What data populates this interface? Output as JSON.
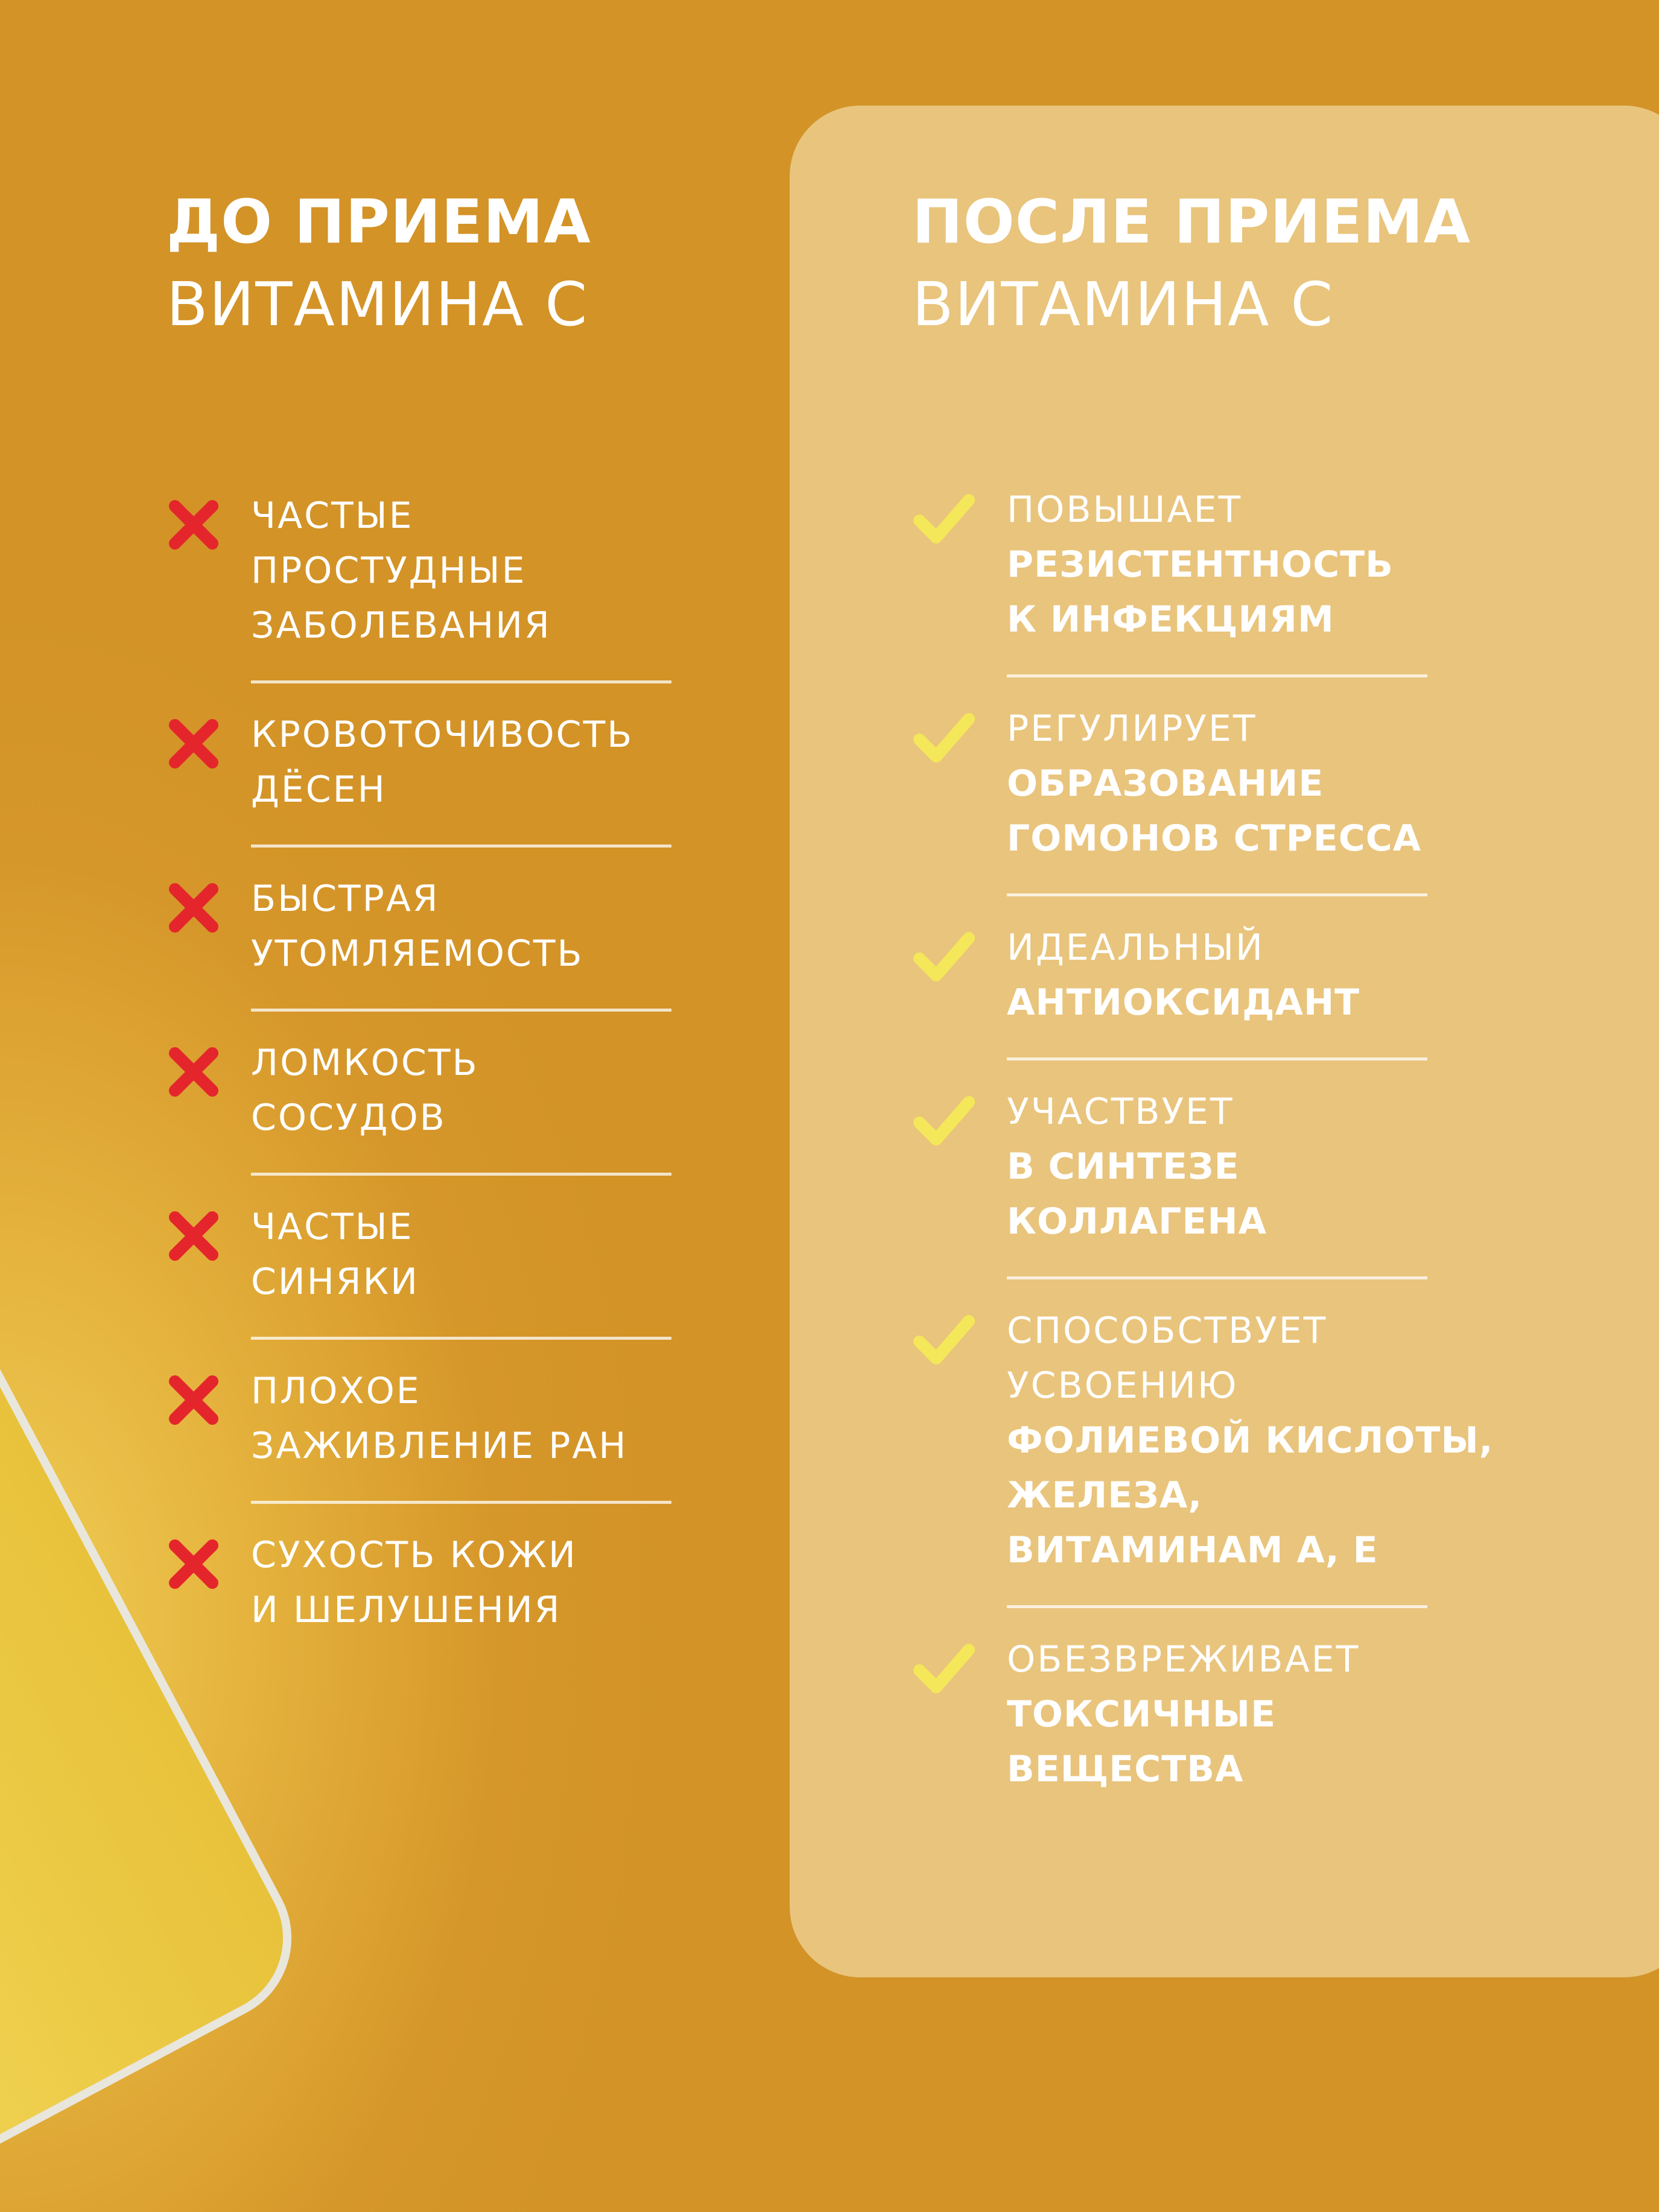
{
  "left": {
    "title": "ДО ПРИЕМА",
    "subtitle": "ВИТАМИНА С",
    "items": [
      [
        "ЧАСТЫЕ",
        "ПРОСТУДНЫЕ",
        "ЗАБОЛЕВАНИЯ"
      ],
      [
        "КРОВОТОЧИВОСТЬ",
        "ДЁСЕН"
      ],
      [
        "БЫСТРАЯ",
        "УТОМЛЯЕМОСТЬ"
      ],
      [
        "ЛОМКОСТЬ",
        "СОСУДОВ"
      ],
      [
        "ЧАСТЫЕ",
        "СИНЯКИ"
      ],
      [
        "ПЛОХОЕ",
        "ЗАЖИВЛЕНИЕ РАН"
      ],
      [
        "СУХОСТЬ КОЖИ",
        "И ШЕЛУШЕНИЯ"
      ]
    ]
  },
  "right": {
    "title": "ПОСЛЕ ПРИЕМА",
    "subtitle": "ВИТАМИНА С",
    "items": [
      {
        "normal": [
          "ПОВЫШАЕТ"
        ],
        "bold": [
          "РЕЗИСТЕНТНОСТЬ",
          "К ИНФЕКЦИЯМ"
        ]
      },
      {
        "normal": [
          "РЕГУЛИРУЕТ"
        ],
        "bold": [
          "ОБРАЗОВАНИЕ",
          "ГОМОНОВ СТРЕССА"
        ]
      },
      {
        "normal": [
          "ИДЕАЛЬНЫЙ"
        ],
        "bold": [
          "АНТИОКСИДАНТ"
        ]
      },
      {
        "normal": [
          "УЧАСТВУЕТ"
        ],
        "bold": [
          "В СИНТЕЗЕ",
          "КОЛЛАГЕНА"
        ]
      },
      {
        "normal": [
          "СПОСОБСТВУЕТ",
          "УСВОЕНИЮ"
        ],
        "bold": [
          "ФОЛИЕВОЙ КИСЛОТЫ,",
          "ЖЕЛЕЗА,",
          "ВИТАМИНАМ А, Е"
        ]
      },
      {
        "normal": [
          "ОБЕЗВРЕЖИВАЕТ"
        ],
        "bold": [
          "ТОКСИЧНЫЕ",
          "ВЕЩЕСТВА"
        ]
      }
    ]
  }
}
